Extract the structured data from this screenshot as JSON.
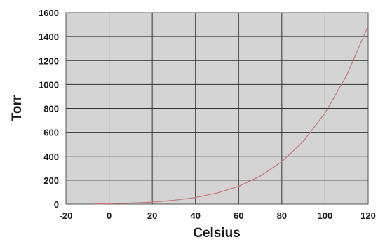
{
  "chart_data": {
    "type": "line",
    "title": "",
    "xlabel": "Celsius",
    "ylabel": "Torr",
    "xlim": [
      -20,
      120
    ],
    "ylim": [
      0,
      1600
    ],
    "xticks": [
      "-20",
      "0",
      "20",
      "40",
      "60",
      "80",
      "100",
      "120"
    ],
    "yticks": [
      "0",
      "200",
      "400",
      "600",
      "800",
      "1000",
      "1200",
      "1400",
      "1600"
    ],
    "grid": true,
    "legend": "none",
    "series": [
      {
        "color": "#c87a7a",
        "x": [
          -7,
          0,
          10,
          20,
          30,
          40,
          50,
          60,
          70,
          80,
          90,
          100,
          110,
          120
        ],
        "y": [
          2,
          4,
          9,
          17,
          32,
          55,
          93,
          149,
          234,
          355,
          526,
          760,
          1075,
          1489
        ]
      }
    ]
  }
}
